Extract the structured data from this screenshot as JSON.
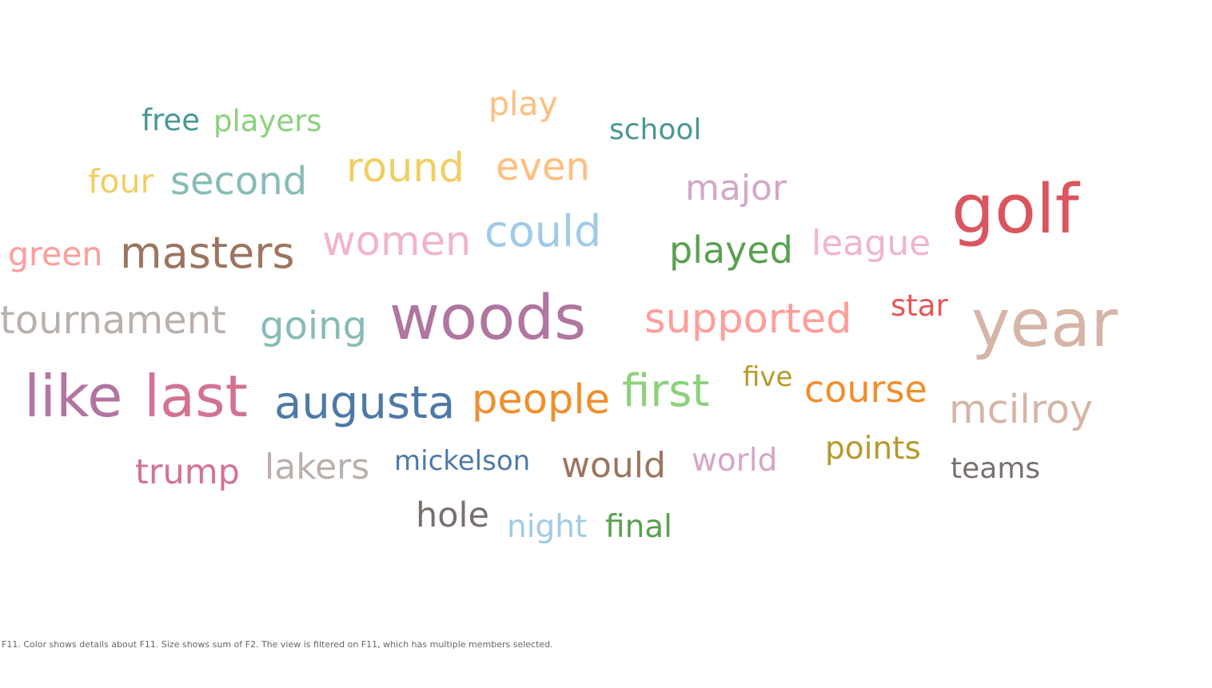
{
  "chart_data": {
    "type": "wordcloud",
    "words": [
      {
        "text": "golf",
        "size": 100,
        "color": "#d95660"
      },
      {
        "text": "year",
        "size": 96,
        "color": "#d5b5a6"
      },
      {
        "text": "woods",
        "size": 90,
        "color": "#b075a0"
      },
      {
        "text": "like",
        "size": 85,
        "color": "#b175a0"
      },
      {
        "text": "last",
        "size": 85,
        "color": "#d2738f"
      },
      {
        "text": "augusta",
        "size": 66,
        "color": "#4e79a7"
      },
      {
        "text": "first",
        "size": 66,
        "color": "#8cd17d"
      },
      {
        "text": "masters",
        "size": 64,
        "color": "#9c755f"
      },
      {
        "text": "could",
        "size": 64,
        "color": "#a0cbe8"
      },
      {
        "text": "people",
        "size": 60,
        "color": "#f28e2b"
      },
      {
        "text": "supported",
        "size": 60,
        "color": "#ff9d9a"
      },
      {
        "text": "women",
        "size": 60,
        "color": "#f1b5c8"
      },
      {
        "text": "round",
        "size": 60,
        "color": "#f1ce63"
      },
      {
        "text": "mcilroy",
        "size": 58,
        "color": "#d4b5a6"
      },
      {
        "text": "tournament",
        "size": 56,
        "color": "#bab0ac"
      },
      {
        "text": "going",
        "size": 56,
        "color": "#86bcb6"
      },
      {
        "text": "second",
        "size": 56,
        "color": "#86bcb6"
      },
      {
        "text": "even",
        "size": 56,
        "color": "#ffbe7d"
      },
      {
        "text": "course",
        "size": 54,
        "color": "#f28e2b"
      },
      {
        "text": "played",
        "size": 54,
        "color": "#59a14f"
      },
      {
        "text": "major",
        "size": 52,
        "color": "#d4a6c8"
      },
      {
        "text": "league",
        "size": 52,
        "color": "#f1b5c8"
      },
      {
        "text": "would",
        "size": 52,
        "color": "#9c755f"
      },
      {
        "text": "lakers",
        "size": 52,
        "color": "#bab0ac"
      },
      {
        "text": "trump",
        "size": 50,
        "color": "#d37295"
      },
      {
        "text": "hole",
        "size": 50,
        "color": "#79706e"
      },
      {
        "text": "green",
        "size": 48,
        "color": "#ff9d9a"
      },
      {
        "text": "four",
        "size": 48,
        "color": "#f1ce63"
      },
      {
        "text": "play",
        "size": 48,
        "color": "#ffbe7d"
      },
      {
        "text": "points",
        "size": 46,
        "color": "#b6992d"
      },
      {
        "text": "final",
        "size": 46,
        "color": "#59a14f"
      },
      {
        "text": "world",
        "size": 46,
        "color": "#d4a6c8"
      },
      {
        "text": "night",
        "size": 46,
        "color": "#a0cbe8"
      },
      {
        "text": "players",
        "size": 44,
        "color": "#8cd17d"
      },
      {
        "text": "free",
        "size": 44,
        "color": "#499894"
      },
      {
        "text": "star",
        "size": 44,
        "color": "#e15759"
      },
      {
        "text": "teams",
        "size": 42,
        "color": "#79706e"
      },
      {
        "text": "school",
        "size": 42,
        "color": "#499894"
      },
      {
        "text": "mickelson",
        "size": 40,
        "color": "#4e79a7"
      },
      {
        "text": "five",
        "size": 40,
        "color": "#b6992d"
      }
    ]
  },
  "footer": {
    "caption": "F11.  Color shows details about F11.  Size shows sum of F2. The view is filtered on F11, which has multiple members selected."
  }
}
